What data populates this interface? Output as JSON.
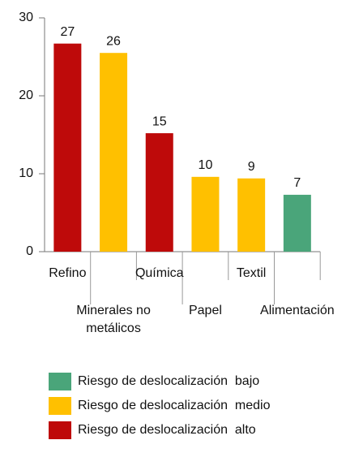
{
  "chart_data": {
    "type": "bar",
    "categories": [
      "Refino",
      "Minerales no metálicos",
      "Química",
      "Papel",
      "Textil",
      "Alimentación"
    ],
    "values": [
      26.7,
      25.5,
      15.2,
      9.6,
      9.4,
      7.3
    ],
    "value_labels": [
      "27",
      "26",
      "15",
      "10",
      "9",
      "7"
    ],
    "colors": [
      "#be0a0a",
      "#ffc000",
      "#be0a0a",
      "#ffc000",
      "#ffc000",
      "#4aa57a"
    ],
    "ylim": [
      0,
      30
    ],
    "yticks": [
      0,
      10,
      20,
      30
    ],
    "grid": false,
    "legend": [
      {
        "name": "Riesgo de deslocalización  bajo",
        "color": "#4aa57a"
      },
      {
        "name": "Riesgo de deslocalización  medio",
        "color": "#ffc000"
      },
      {
        "name": "Riesgo de deslocalización  alto",
        "color": "#be0a0a"
      }
    ]
  }
}
